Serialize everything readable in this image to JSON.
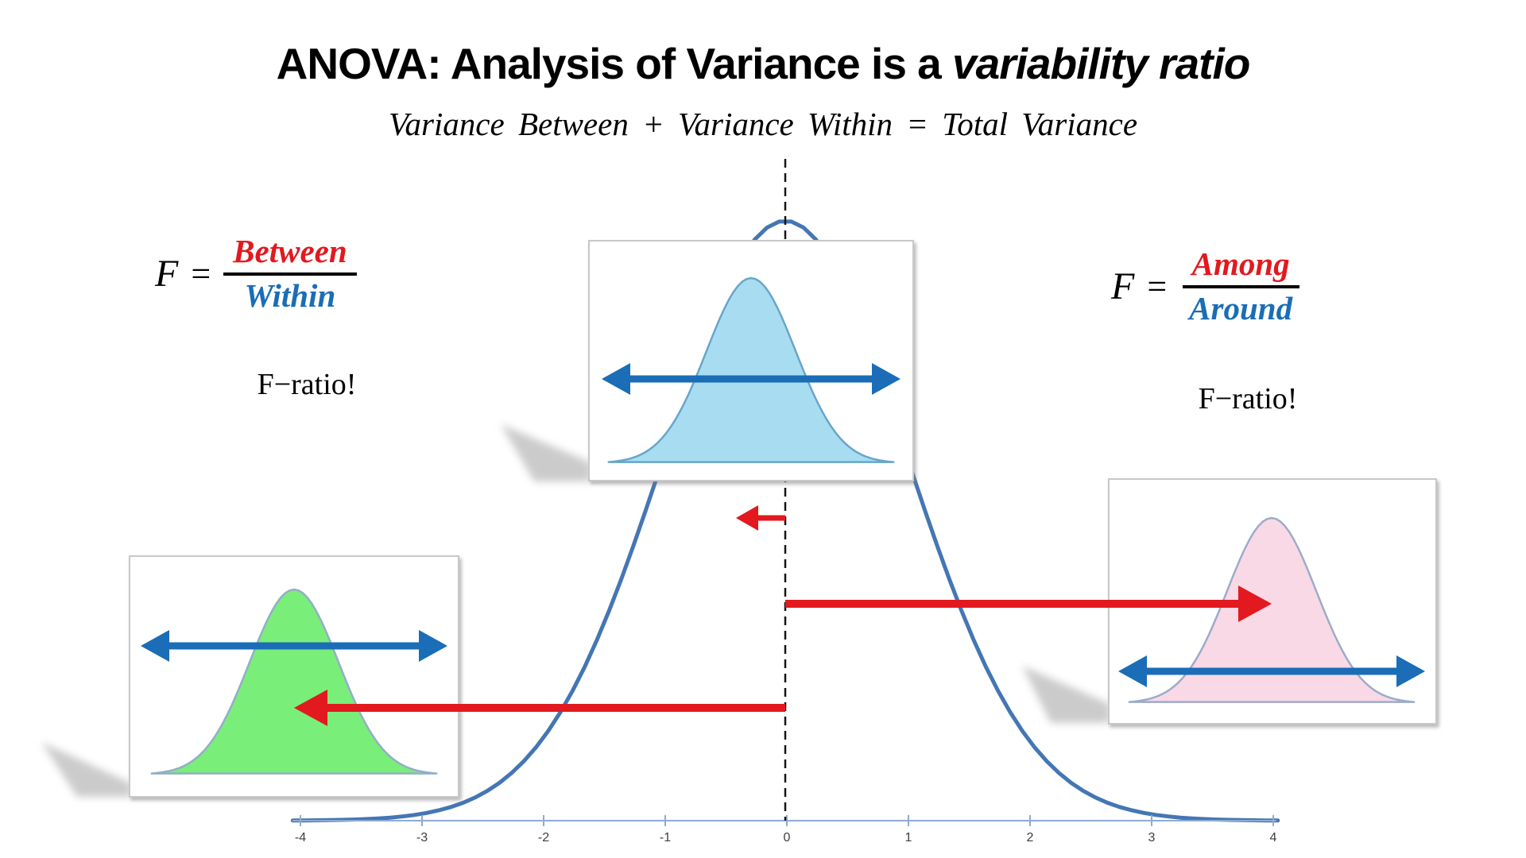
{
  "title": {
    "main": "ANOVA: Analysis of Variance is a ",
    "emphasis": "variability ratio"
  },
  "subtitle": "Variance Between + Variance Within = Total Variance",
  "formula_left": {
    "lhs": "F",
    "equals": "=",
    "numerator": "Between",
    "denominator": "Within",
    "caption": "F−ratio!"
  },
  "formula_right": {
    "lhs": "F",
    "equals": "=",
    "numerator": "Among",
    "denominator": "Around",
    "caption": "F−ratio!"
  },
  "axis": {
    "ticks": [
      "-4",
      "-3",
      "-2",
      "-1",
      "0",
      "1",
      "2",
      "3",
      "4"
    ]
  },
  "figure": {
    "x_axis_range": [
      -4,
      4
    ],
    "dashed_line_at": 0,
    "total_curve": "total-variance-normal-curve",
    "group_curves": [
      {
        "name": "center-group-curve",
        "color_name": "light-blue"
      },
      {
        "name": "left-group-curve",
        "color_name": "green"
      },
      {
        "name": "right-group-curve",
        "color_name": "pink"
      }
    ]
  },
  "colors": {
    "red_accent": "#e2191f",
    "blue_accent": "#1a6db6",
    "curve_stroke": "#4576b4",
    "axis_stroke": "#8fabd2",
    "tick_text": "#3f3f3f",
    "dashed_line": "#151515",
    "box_border": "#c8c8c8",
    "center_fill": "#a8dcf0",
    "center_stroke": "#67a6cb",
    "green_fill": "#79ee79",
    "green_stroke": "#93aec7",
    "pink_fill": "#f9d9e6",
    "pink_stroke": "#9dabc9",
    "shadow": "#a9a9a9"
  }
}
